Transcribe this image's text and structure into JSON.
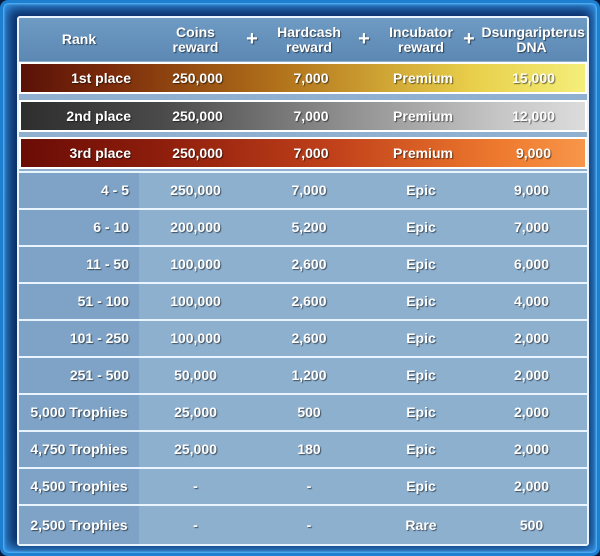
{
  "headers": {
    "rank": "Rank",
    "coins": "Coins reward",
    "hardcash": "Hardcash reward",
    "incubator": "Incubator reward",
    "dna": "Dsungaripterus DNA",
    "plus": "+"
  },
  "rows": [
    {
      "rank": "1st place",
      "coins": "250,000",
      "hardcash": "7,000",
      "incubator": "Premium",
      "dna": "15,000"
    },
    {
      "rank": "2nd place",
      "coins": "250,000",
      "hardcash": "7,000",
      "incubator": "Premium",
      "dna": "12,000"
    },
    {
      "rank": "3rd place",
      "coins": "250,000",
      "hardcash": "7,000",
      "incubator": "Premium",
      "dna": "9,000"
    },
    {
      "rank": "4 - 5",
      "coins": "250,000",
      "hardcash": "7,000",
      "incubator": "Epic",
      "dna": "9,000"
    },
    {
      "rank": "6 - 10",
      "coins": "200,000",
      "hardcash": "5,200",
      "incubator": "Epic",
      "dna": "7,000"
    },
    {
      "rank": "11 - 50",
      "coins": "100,000",
      "hardcash": "2,600",
      "incubator": "Epic",
      "dna": "6,000"
    },
    {
      "rank": "51 - 100",
      "coins": "100,000",
      "hardcash": "2,600",
      "incubator": "Epic",
      "dna": "4,000"
    },
    {
      "rank": "101 - 250",
      "coins": "100,000",
      "hardcash": "2,600",
      "incubator": "Epic",
      "dna": "2,000"
    },
    {
      "rank": "251 - 500",
      "coins": "50,000",
      "hardcash": "1,200",
      "incubator": "Epic",
      "dna": "2,000"
    },
    {
      "rank": "5,000 Trophies",
      "coins": "25,000",
      "hardcash": "500",
      "incubator": "Epic",
      "dna": "2,000"
    },
    {
      "rank": "4,750 Trophies",
      "coins": "25,000",
      "hardcash": "180",
      "incubator": "Epic",
      "dna": "2,000"
    },
    {
      "rank": "4,500 Trophies",
      "coins": "-",
      "hardcash": "-",
      "incubator": "Epic",
      "dna": "2,000"
    },
    {
      "rank": "2,500 Trophies",
      "coins": "-",
      "hardcash": "-",
      "incubator": "Rare",
      "dna": "500"
    }
  ]
}
